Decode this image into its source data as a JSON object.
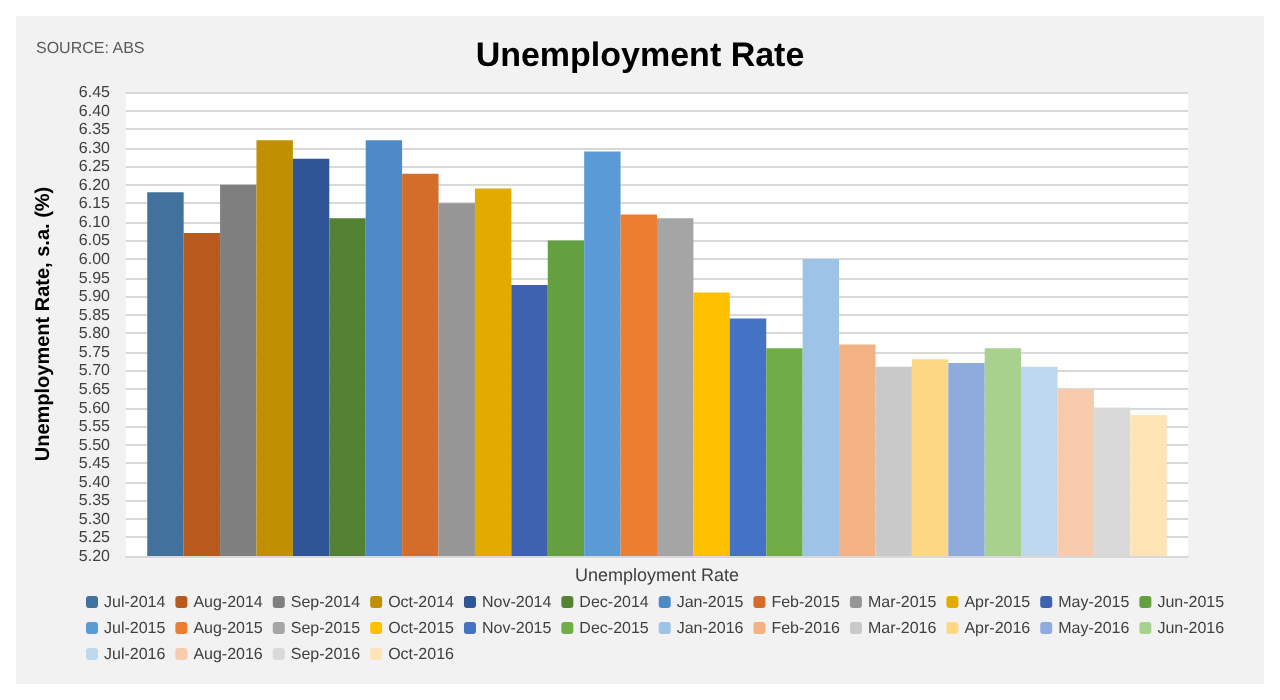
{
  "chart_data": {
    "type": "bar",
    "title": "Unemployment Rate",
    "ylabel": "Unemployment Rate, s.a. (%)",
    "annotations": [
      "SOURCE: ABS"
    ],
    "categories": [
      "Unemployment Rate"
    ],
    "ylim": [
      5.2,
      6.45
    ],
    "yticks": [
      {
        "value": 5.2,
        "label": "5.20"
      },
      5.25,
      {
        "value": 5.3,
        "label": "5.30"
      },
      5.35,
      {
        "value": 5.4,
        "label": "5.40"
      },
      5.45,
      {
        "value": 5.5,
        "label": "5.50"
      },
      5.55,
      {
        "value": 5.6,
        "label": "5.60"
      },
      5.65,
      {
        "value": 5.7,
        "label": "5.70"
      },
      5.75,
      {
        "value": 5.8,
        "label": "5.80"
      },
      5.85,
      {
        "value": 5.9,
        "label": "5.90"
      },
      5.95,
      {
        "value": 6,
        "label": "6.00"
      },
      6.05,
      {
        "value": 6.1,
        "label": "6.10"
      },
      6.15,
      {
        "value": 6.2,
        "label": "6.20"
      },
      6.25,
      {
        "value": 6.3,
        "label": "6.30"
      },
      6.35,
      {
        "value": 6.4,
        "label": "6.40"
      },
      6.45
    ],
    "grid": "y",
    "legend": "bottom",
    "series": [
      {
        "name": "Jul-2014",
        "color": "#41719c",
        "values": [
          6.18
        ]
      },
      {
        "name": "Aug-2014",
        "color": "#b85a1e",
        "values": [
          6.07
        ]
      },
      {
        "name": "Sep-2014",
        "color": "#7f7f7f",
        "values": [
          6.2
        ]
      },
      {
        "name": "Oct-2014",
        "color": "#c09000",
        "values": [
          6.32
        ]
      },
      {
        "name": "Nov-2014",
        "color": "#2f5597",
        "values": [
          6.27
        ]
      },
      {
        "name": "Dec-2014",
        "color": "#548235",
        "values": [
          6.11
        ]
      },
      {
        "name": "Jan-2015",
        "color": "#4f8ac8",
        "values": [
          6.32
        ]
      },
      {
        "name": "Feb-2015",
        "color": "#d46d2a",
        "values": [
          6.23
        ]
      },
      {
        "name": "Mar-2015",
        "color": "#969696",
        "values": [
          6.15
        ]
      },
      {
        "name": "Apr-2015",
        "color": "#e3ab00",
        "values": [
          6.19
        ]
      },
      {
        "name": "May-2015",
        "color": "#3e62b0",
        "values": [
          5.93
        ]
      },
      {
        "name": "Jun-2015",
        "color": "#64a040",
        "values": [
          6.05
        ]
      },
      {
        "name": "Jul-2015",
        "color": "#5b9bd5",
        "values": [
          6.29
        ]
      },
      {
        "name": "Aug-2015",
        "color": "#ed7d31",
        "values": [
          6.12
        ]
      },
      {
        "name": "Sep-2015",
        "color": "#a5a5a5",
        "values": [
          6.11
        ]
      },
      {
        "name": "Oct-2015",
        "color": "#ffc000",
        "values": [
          5.91
        ]
      },
      {
        "name": "Nov-2015",
        "color": "#4472c4",
        "values": [
          5.84
        ]
      },
      {
        "name": "Dec-2015",
        "color": "#70ad47",
        "values": [
          5.76
        ]
      },
      {
        "name": "Jan-2016",
        "color": "#9dc3e6",
        "values": [
          6.0
        ]
      },
      {
        "name": "Feb-2016",
        "color": "#f4b183",
        "values": [
          5.77
        ]
      },
      {
        "name": "Mar-2016",
        "color": "#c9c9c9",
        "values": [
          5.71
        ]
      },
      {
        "name": "Apr-2016",
        "color": "#ffd885",
        "values": [
          5.73
        ]
      },
      {
        "name": "May-2016",
        "color": "#8faadc",
        "values": [
          5.72
        ]
      },
      {
        "name": "Jun-2016",
        "color": "#a9d18e",
        "values": [
          5.76
        ]
      },
      {
        "name": "Jul-2016",
        "color": "#bdd7ee",
        "values": [
          5.71
        ]
      },
      {
        "name": "Aug-2016",
        "color": "#f8cbad",
        "values": [
          5.65
        ]
      },
      {
        "name": "Sep-2016",
        "color": "#d9d9d9",
        "values": [
          5.6
        ]
      },
      {
        "name": "Oct-2016",
        "color": "#ffe4b5",
        "values": [
          5.58
        ]
      }
    ]
  }
}
